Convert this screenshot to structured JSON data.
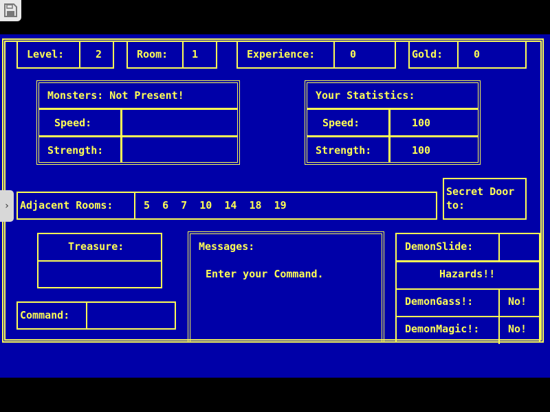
{
  "top": {
    "level_label": "Level:",
    "level": "2",
    "room_label": "Room:",
    "room": "1",
    "experience_label": "Experience:",
    "experience": "0",
    "gold_label": "Gold:",
    "gold": "0"
  },
  "monsters": {
    "title": "Monsters: Not Present!",
    "speed_label": "Speed:",
    "speed": "",
    "strength_label": "Strength:",
    "strength": ""
  },
  "stats": {
    "title": "Your Statistics:",
    "speed_label": "Speed:",
    "speed": "100",
    "strength_label": "Strength:",
    "strength": "100"
  },
  "adjacent": {
    "label": "Adjacent Rooms:",
    "rooms": "5  6  7  10  14  18  19"
  },
  "secret": {
    "line1": "Secret Door",
    "line2": "to:"
  },
  "treasure": {
    "label": "Treasure:",
    "value": ""
  },
  "command": {
    "label": "Command:",
    "value": ""
  },
  "messages": {
    "label": "Messages:",
    "text": "Enter your Command."
  },
  "hazards": {
    "slide_label": "DemonSlide:",
    "slide": "",
    "title": "Hazards!!",
    "gass_label": "DemonGass!:",
    "gass": "No!",
    "magic_label": "DemonMagic!:",
    "magic": "No!"
  },
  "colors": {
    "background": "#0000a8",
    "foreground": "#ffff55"
  },
  "icons": {
    "save": "floppy-disk-icon",
    "side": "chevron-right-icon"
  }
}
